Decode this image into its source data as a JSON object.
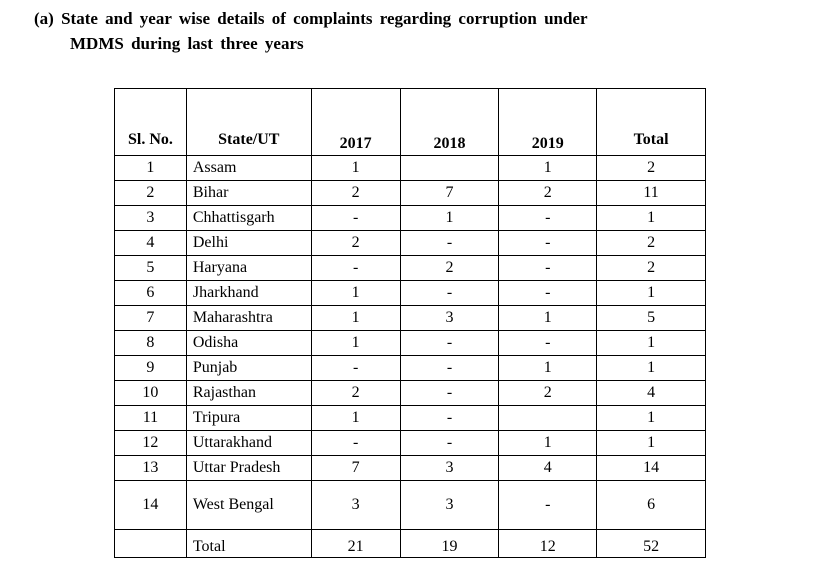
{
  "heading": {
    "line1": "(a)  State and year wise details of complaints regarding corruption under",
    "line2": "MDMS  during last three years"
  },
  "table": {
    "headers": [
      "Sl. No.",
      "State/UT",
      "2017",
      "2018",
      "2019",
      "Total"
    ],
    "rows": [
      [
        "1",
        "Assam",
        "1",
        "",
        "1",
        "2"
      ],
      [
        "2",
        "Bihar",
        "2",
        "7",
        "2",
        "11"
      ],
      [
        "3",
        "Chhattisgarh",
        "-",
        "1",
        "-",
        "1"
      ],
      [
        "4",
        "Delhi",
        "2",
        "-",
        "-",
        "2"
      ],
      [
        "5",
        "Haryana",
        "-",
        "2",
        "-",
        "2"
      ],
      [
        "6",
        "Jharkhand",
        "1",
        "-",
        "-",
        "1"
      ],
      [
        "7",
        "Maharashtra",
        "1",
        "3",
        "1",
        "5"
      ],
      [
        "8",
        "Odisha",
        "1",
        "-",
        "-",
        "1"
      ],
      [
        "9",
        "Punjab",
        "-",
        "-",
        "1",
        "1"
      ],
      [
        "10",
        "Rajasthan",
        "2",
        "-",
        "2",
        "4"
      ],
      [
        "11",
        "Tripura",
        "1",
        "-",
        "",
        "1"
      ],
      [
        "12",
        "Uttarakhand",
        "-",
        "-",
        "1",
        "1"
      ],
      [
        "13",
        "Uttar Pradesh",
        "7",
        "3",
        "4",
        "14"
      ],
      [
        "14",
        "West Bengal",
        "3",
        "3",
        "-",
        "6"
      ]
    ],
    "total_row": [
      "",
      "Total",
      "21",
      "19",
      "12",
      "52"
    ]
  }
}
